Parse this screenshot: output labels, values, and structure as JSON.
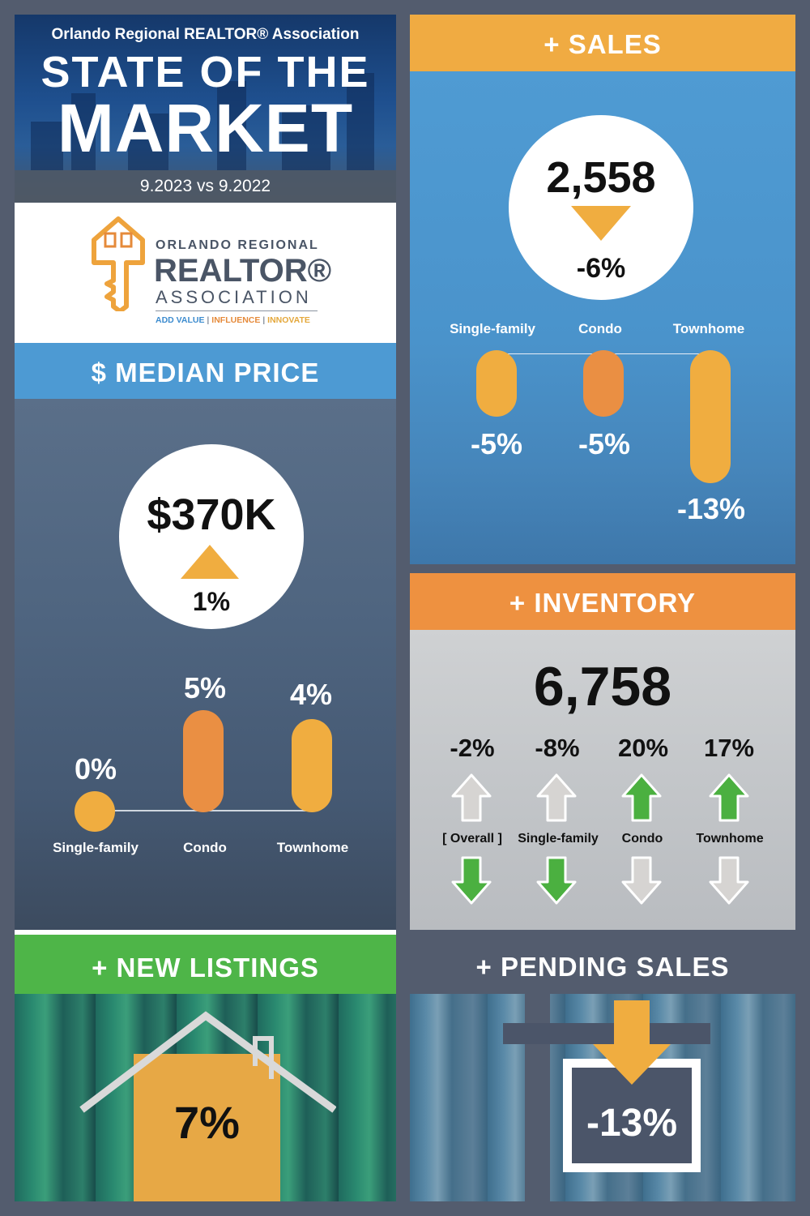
{
  "header": {
    "association": "Orlando Regional REALTOR® Association",
    "title_line1": "STATE OF THE",
    "title_line2": "MARKET",
    "date_comparison": "9.2023 vs 9.2022"
  },
  "logo": {
    "line1": "ORLANDO REGIONAL",
    "line2": "REALTOR®",
    "line3": "ASSOCIATION",
    "tagline": [
      "ADD VALUE",
      "INFLUENCE",
      "INNOVATE"
    ],
    "separator": "|"
  },
  "median_price": {
    "heading": "$ MEDIAN PRICE",
    "value": "$370K",
    "direction": "up",
    "change": "1%",
    "categories": [
      {
        "label": "Single-family",
        "change": "0%",
        "level": 0
      },
      {
        "label": "Condo",
        "change": "5%",
        "level": 5
      },
      {
        "label": "Townhome",
        "change": "4%",
        "level": 4
      }
    ]
  },
  "sales": {
    "heading": "+ SALES",
    "value": "2,558",
    "direction": "down",
    "change": "-6%",
    "categories": [
      {
        "label": "Single-family",
        "change": "-5%",
        "level": -5
      },
      {
        "label": "Condo",
        "change": "-5%",
        "level": -5
      },
      {
        "label": "Townhome",
        "change": "-13%",
        "level": -13
      }
    ]
  },
  "inventory": {
    "heading": "+ INVENTORY",
    "value": "6,758",
    "items": [
      {
        "label": "[ Overall ]",
        "change": "-2%",
        "direction": "down"
      },
      {
        "label": "Single-family",
        "change": "-8%",
        "direction": "down"
      },
      {
        "label": "Condo",
        "change": "20%",
        "direction": "up"
      },
      {
        "label": "Townhome",
        "change": "17%",
        "direction": "up"
      }
    ]
  },
  "new_listings": {
    "heading": "+ NEW LISTINGS",
    "value": "7%"
  },
  "pending_sales": {
    "heading": "+ PENDING SALES",
    "value": "-13%"
  },
  "colors": {
    "background": "#535c6e",
    "blue": "#4d9ad3",
    "gold": "#f0ab42",
    "orange": "#ee9140",
    "green": "#4eb548",
    "arrow_green": "#4bb040"
  }
}
